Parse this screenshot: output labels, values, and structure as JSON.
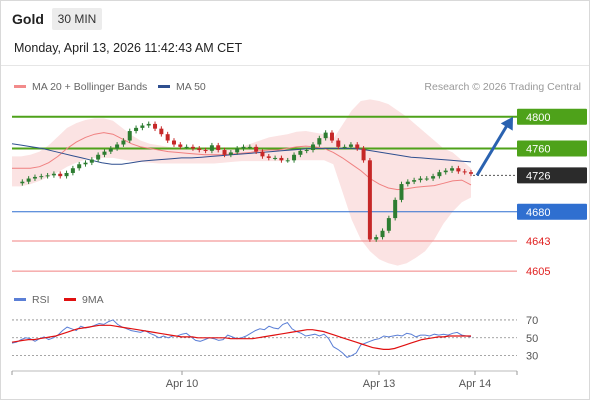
{
  "header": {
    "asset": "Gold",
    "timeframe": "30 MIN",
    "datetime": "Monday, April 13, 2026 11:42:43 AM CET"
  },
  "legend": {
    "items": [
      {
        "label": "MA 20 + Bollinger Bands",
        "color": "#f28b8b"
      },
      {
        "label": "MA 50",
        "color": "#2f4f8f"
      }
    ],
    "credit": "Research © 2026 Trading Central"
  },
  "rsi_legend": {
    "items": [
      {
        "label": "RSI",
        "color": "#5b7fd6"
      },
      {
        "label": "9MA",
        "color": "#e01010"
      }
    ]
  },
  "colors": {
    "resistance": "#4ea21a",
    "support": "#2f6fd0",
    "support_weak": "#f08080",
    "pivot": "#333333",
    "arrow": "#2a62b0",
    "candle_up": "#2e7d32",
    "candle_down": "#c62828",
    "band": "#fbe3e3"
  },
  "chart_data": [
    {
      "type": "candlestick",
      "title": "Gold",
      "ylim": [
        4590,
        4825
      ],
      "x_tick_labels": [
        "Apr 10",
        "Apr 13",
        "Apr 14"
      ],
      "levels": [
        {
          "value": 4800,
          "label": "4800",
          "kind": "resistance"
        },
        {
          "value": 4760,
          "label": "4760",
          "kind": "resistance"
        },
        {
          "value": 4726,
          "label": "4726",
          "kind": "pivot"
        },
        {
          "value": 4680,
          "label": "4680",
          "kind": "support"
        },
        {
          "value": 4643,
          "label": "4643",
          "kind": "support-weak"
        },
        {
          "value": 4605,
          "label": "4605",
          "kind": "support-weak"
        }
      ],
      "price": [
        4716,
        4718,
        4722,
        4724,
        4725,
        4726,
        4728,
        4725,
        4729,
        4735,
        4740,
        4742,
        4746,
        4752,
        4756,
        4760,
        4765,
        4770,
        4782,
        4786,
        4789,
        4791,
        4785,
        4778,
        4770,
        4765,
        4762,
        4762,
        4760,
        4758,
        4757,
        4764,
        4758,
        4752,
        4755,
        4760,
        4762,
        4762,
        4756,
        4750,
        4748,
        4748,
        4745,
        4745,
        4752,
        4757,
        4758,
        4765,
        4773,
        4780,
        4770,
        4762,
        4762,
        4765,
        4760,
        4745,
        4645,
        4648,
        4656,
        4672,
        4695,
        4715,
        4718,
        4720,
        4722,
        4722,
        4725,
        4730,
        4732,
        4735,
        4731,
        4730,
        4728
      ],
      "ma50": [
        4766,
        4764,
        4762,
        4760,
        4757,
        4754,
        4751,
        4748,
        4745,
        4742,
        4740,
        4740,
        4742,
        4744,
        4745,
        4746,
        4747,
        4748,
        4748,
        4749,
        4750,
        4751,
        4752,
        4753,
        4754,
        4755,
        4756,
        4757,
        4758,
        4759,
        4760,
        4760,
        4760,
        4760,
        4760,
        4759,
        4757,
        4755,
        4753,
        4751,
        4749,
        4748,
        4747,
        4746,
        4745,
        4744,
        4743
      ],
      "bollinger": {
        "mid": [
          4735,
          4735,
          4735,
          4737,
          4742,
          4750,
          4760,
          4768,
          4774,
          4778,
          4780,
          4778,
          4772,
          4766,
          4762,
          4760,
          4758,
          4756,
          4755,
          4754,
          4753,
          4752,
          4752,
          4752,
          4753,
          4754,
          4755,
          4757,
          4758,
          4758,
          4760,
          4762,
          4763,
          4762,
          4760,
          4755,
          4748,
          4740,
          4732,
          4722,
          4715,
          4710,
          4708,
          4709,
          4711,
          4712,
          4713,
          4716,
          4719,
          4720,
          4714
        ],
        "upper": [
          4750,
          4750,
          4752,
          4756,
          4764,
          4775,
          4786,
          4792,
          4796,
          4798,
          4798,
          4795,
          4786,
          4777,
          4770,
          4766,
          4764,
          4762,
          4760,
          4760,
          4760,
          4759,
          4758,
          4758,
          4760,
          4762,
          4766,
          4770,
          4774,
          4776,
          4778,
          4781,
          4782,
          4780,
          4778,
          4772,
          4790,
          4808,
          4820,
          4822,
          4820,
          4816,
          4808,
          4800,
          4790,
          4780,
          4770,
          4760,
          4755,
          4745,
          4735
        ],
        "lower": [
          4712,
          4712,
          4715,
          4719,
          4724,
          4730,
          4737,
          4742,
          4746,
          4748,
          4748,
          4748,
          4746,
          4744,
          4743,
          4742,
          4741,
          4741,
          4741,
          4741,
          4741,
          4741,
          4741,
          4742,
          4743,
          4744,
          4744,
          4744,
          4744,
          4744,
          4745,
          4745,
          4745,
          4745,
          4745,
          4740,
          4705,
          4670,
          4645,
          4630,
          4620,
          4615,
          4612,
          4615,
          4622,
          4630,
          4645,
          4665,
          4680,
          4692,
          4698
        ]
      },
      "projection": {
        "from": 4726,
        "to": 4800
      }
    },
    {
      "type": "line",
      "title": "RSI",
      "ylim": [
        15,
        80
      ],
      "y_tick_labels": [
        "70",
        "50",
        "30"
      ],
      "series": [
        {
          "name": "RSI",
          "values": [
            44,
            45,
            48,
            50,
            49,
            46,
            49,
            51,
            48,
            50,
            53,
            58,
            62,
            60,
            58,
            63,
            61,
            62,
            64,
            66,
            65,
            68,
            70,
            65,
            62,
            60,
            58,
            57,
            56,
            58,
            55,
            53,
            50,
            52,
            50,
            52,
            52,
            54,
            55,
            51,
            47,
            46,
            48,
            50,
            49,
            47,
            48,
            53,
            51,
            49,
            50,
            52,
            55,
            58,
            60,
            59,
            63,
            61,
            60,
            65,
            67,
            60,
            57,
            55,
            52,
            53,
            54,
            52,
            54,
            49,
            40,
            37,
            33,
            28,
            30,
            33,
            42,
            44,
            46,
            48,
            49,
            52,
            51,
            52,
            53,
            52,
            55,
            54,
            51,
            53,
            53,
            52,
            54,
            53,
            54,
            53,
            55,
            56,
            53,
            52,
            51
          ]
        },
        {
          "name": "9MA",
          "values": [
            45,
            46,
            47,
            48,
            48,
            49,
            50,
            51,
            52,
            54,
            56,
            58,
            60,
            61,
            62,
            63,
            64,
            64,
            64,
            63,
            62,
            61,
            60,
            59,
            58,
            57,
            56,
            55,
            54,
            53,
            52,
            51,
            51,
            51,
            50,
            50,
            50,
            50,
            50,
            50,
            49,
            49,
            49,
            49,
            49,
            50,
            51,
            52,
            53,
            54,
            55,
            56,
            57,
            58,
            59,
            59,
            58,
            57,
            55,
            53,
            51,
            49,
            47,
            45,
            43,
            41,
            39,
            38,
            37,
            37,
            38,
            40,
            42,
            44,
            46,
            48,
            49,
            50,
            51,
            51,
            52,
            52,
            52,
            52,
            52
          ]
        }
      ]
    }
  ]
}
